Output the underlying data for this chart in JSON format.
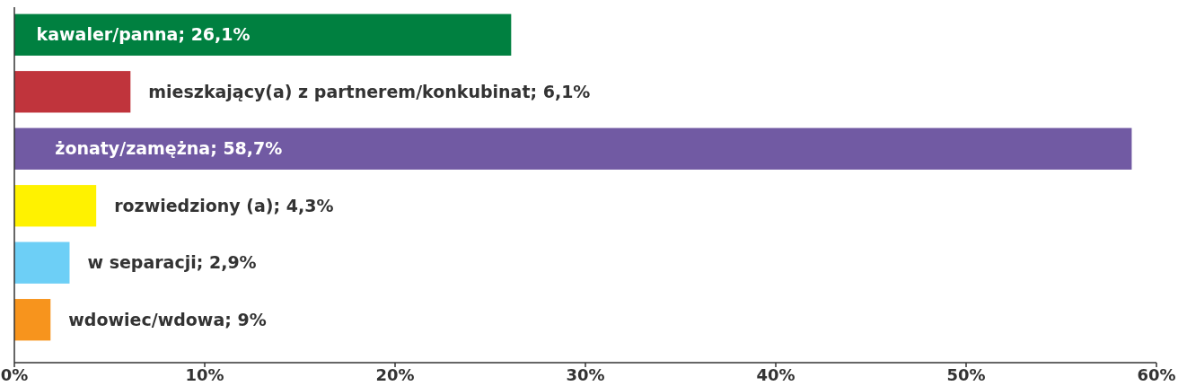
{
  "chart_data": {
    "type": "bar",
    "orientation": "horizontal",
    "categories": [
      "kawaler/panna; 26,1%",
      "mieszkający(a) z partnerem/konkubinat; 6,1%",
      "żonaty/zamężna; 58,7%",
      "rozwiedziony (a); 4,3%",
      "w separacji; 2,9%",
      "wdowiec/wdowa; 9%"
    ],
    "values": [
      26.1,
      6.1,
      58.7,
      4.3,
      2.9,
      1.9
    ],
    "colors": [
      "#008040",
      "#c0343c",
      "#715aa3",
      "#fff200",
      "#6dcff6",
      "#f7941d"
    ],
    "xlim": [
      0,
      60
    ],
    "xticks": [
      {
        "value": 0,
        "label": "0%"
      },
      {
        "value": 10,
        "label": "10%"
      },
      {
        "value": 20,
        "label": "20%"
      },
      {
        "value": 30,
        "label": "30%"
      },
      {
        "value": 40,
        "label": "40%"
      },
      {
        "value": 50,
        "label": "50%"
      },
      {
        "value": 60,
        "label": "60%"
      }
    ],
    "grid": false
  }
}
